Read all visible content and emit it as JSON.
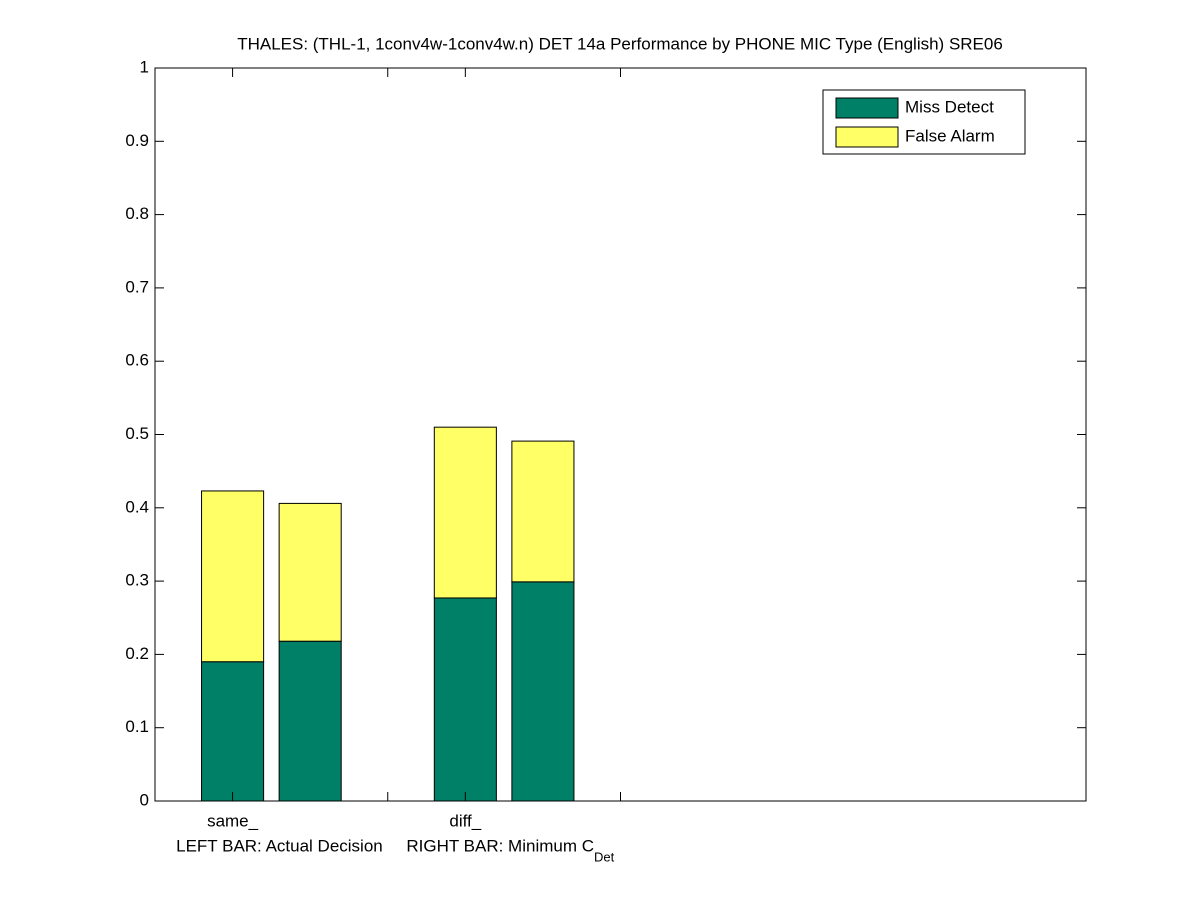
{
  "chart_data": {
    "type": "stacked_bar",
    "title": "THALES: (THL-1, 1conv4w-1conv4w.n) DET 14a Performance by PHONE MIC Type (English) SRE06",
    "xlabel": "LEFT BAR: Actual Decision     RIGHT BAR: Minimum C",
    "xlabel_subscript": "Det",
    "x": [
      1,
      2,
      4,
      5
    ],
    "series": [
      {
        "name": "Miss Detect",
        "color": "#008066",
        "values": [
          0.19,
          0.218,
          0.277,
          0.299
        ]
      },
      {
        "name": "False Alarm",
        "color": "#ffff66",
        "values": [
          0.233,
          0.188,
          0.233,
          0.192
        ]
      }
    ],
    "xlim": [
      0,
      12
    ],
    "xticks": [
      {
        "value": 1,
        "label": "same_"
      },
      {
        "value": 3,
        "label": null
      },
      {
        "value": 4,
        "label": "diff_"
      },
      {
        "value": 6,
        "label": null
      }
    ],
    "ylim": [
      0,
      1
    ],
    "yticks": [
      0,
      0.1,
      0.2,
      0.3,
      0.4,
      0.5,
      0.6,
      0.7,
      0.8,
      0.9,
      1
    ],
    "legend": "top-right"
  }
}
